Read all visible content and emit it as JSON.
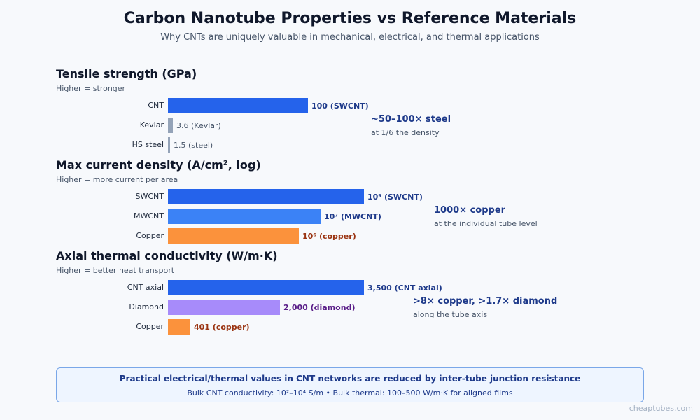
{
  "header": {
    "title": "Carbon Nanotube Properties vs Reference Materials",
    "subtitle": "Why CNTs are uniquely valuable in mechanical, electrical, and thermal applications"
  },
  "chart_data": [
    {
      "type": "bar",
      "orientation": "horizontal",
      "title": "Tensile strength (GPa)",
      "subtitle": "Higher = stronger",
      "categories": [
        "CNT",
        "Kevlar",
        "HS steel"
      ],
      "values": [
        100,
        3.6,
        1.5
      ],
      "value_labels": [
        "100 (SWCNT)",
        "3.6 (Kevlar)",
        "1.5 (steel)"
      ],
      "colors": [
        "#2563eb",
        "#94a3b8",
        "#94a3b8"
      ],
      "label_colors": [
        "#1e3a8a",
        "#475569",
        "#475569"
      ],
      "label_bold": [
        true,
        false,
        false
      ],
      "xlim": [
        0,
        140
      ],
      "scale": "linear",
      "annotation": {
        "main": "~50–100× steel",
        "sub": "at 1/6 the density"
      }
    },
    {
      "type": "bar",
      "orientation": "horizontal",
      "title": "Max current density (A/cm², log)",
      "subtitle": "Higher = more current per area",
      "categories": [
        "SWCNT",
        "MWCNT",
        "Copper"
      ],
      "values": [
        1000000000,
        10000000,
        1000000
      ],
      "value_labels": [
        "10⁹ (SWCNT)",
        "10⁷ (MWCNT)",
        "10⁶ (copper)"
      ],
      "colors": [
        "#2563eb",
        "#3b82f6",
        "#fb923c"
      ],
      "label_colors": [
        "#1e3a8a",
        "#1e3a8a",
        "#9a3412"
      ],
      "label_bold": [
        true,
        true,
        true
      ],
      "xlim": [
        1,
        1000000000
      ],
      "scale": "log",
      "annotation": {
        "main": "1000× copper",
        "sub": "at the individual tube level"
      }
    },
    {
      "type": "bar",
      "orientation": "horizontal",
      "title": "Axial thermal conductivity (W/m·K)",
      "subtitle": "Higher = better heat transport",
      "categories": [
        "CNT axial",
        "Diamond",
        "Copper"
      ],
      "values": [
        3500,
        2000,
        401
      ],
      "value_labels": [
        "3,500 (CNT axial)",
        "2,000 (diamond)",
        "401 (copper)"
      ],
      "colors": [
        "#2563eb",
        "#a78bfa",
        "#fb923c"
      ],
      "label_colors": [
        "#1e3a8a",
        "#581c87",
        "#9a3412"
      ],
      "label_bold": [
        true,
        true,
        true
      ],
      "xlim": [
        0,
        3500
      ],
      "scale": "linear",
      "annotation": {
        "main": ">8× copper, >1.7× diamond",
        "sub": "along the tube axis"
      }
    }
  ],
  "footer": {
    "main": "Practical electrical/thermal values in CNT networks are reduced by inter-tube junction resistance",
    "sub": "Bulk CNT conductivity: 10²–10⁴ S/m • Bulk thermal: 100–500 W/m·K for aligned films"
  },
  "watermark": "cheaptubes.com"
}
